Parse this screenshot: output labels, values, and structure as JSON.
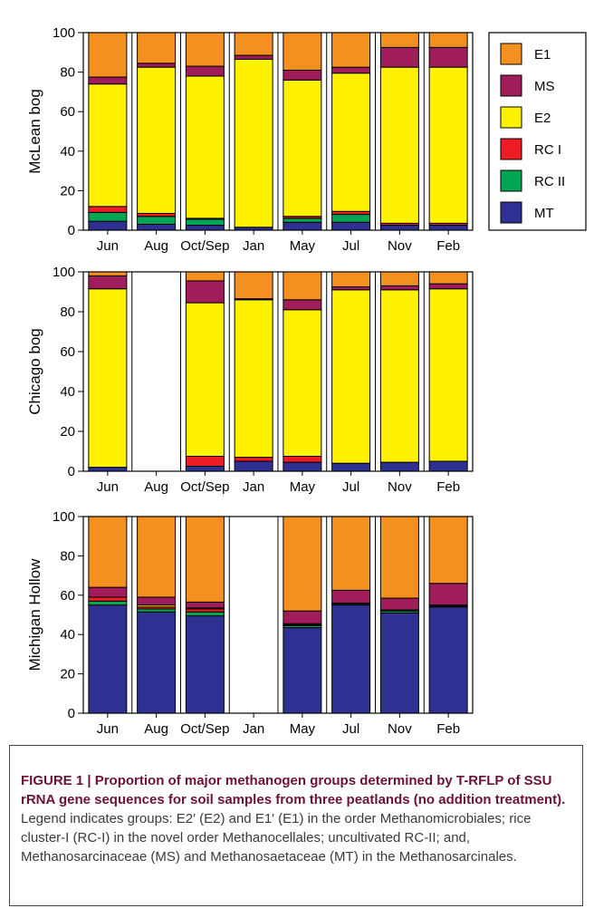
{
  "chart_data": [
    {
      "type": "bar",
      "stacked": true,
      "ylabel": "McLean bog",
      "ylim": [
        0,
        100
      ],
      "yticks": [
        0,
        20,
        40,
        60,
        80,
        100
      ],
      "categories": [
        "Jun",
        "Aug",
        "Oct/Sep",
        "Jan",
        "May",
        "Jul",
        "Nov",
        "Feb"
      ],
      "series": [
        {
          "name": "MT",
          "values": [
            4.5,
            3,
            2.5,
            1.5,
            4,
            4,
            2.5,
            2.5
          ]
        },
        {
          "name": "RC II",
          "values": [
            4.5,
            4,
            3,
            0,
            2,
            4,
            0,
            0
          ]
        },
        {
          "name": "RC I",
          "values": [
            3,
            1.5,
            0.5,
            0,
            1,
            1.5,
            1,
            1
          ]
        },
        {
          "name": "E2",
          "values": [
            62,
            74,
            72,
            85,
            69,
            70,
            79,
            79
          ]
        },
        {
          "name": "MS",
          "values": [
            3.5,
            2,
            5,
            2,
            5,
            3,
            10,
            10
          ]
        },
        {
          "name": "E1",
          "values": [
            22.5,
            15.5,
            17,
            11.5,
            19,
            17.5,
            7.5,
            7.5
          ]
        }
      ],
      "grid": false
    },
    {
      "type": "bar",
      "stacked": true,
      "ylabel": "Chicago bog",
      "ylim": [
        0,
        100
      ],
      "yticks": [
        0,
        20,
        40,
        60,
        80,
        100
      ],
      "categories": [
        "Jun",
        "Aug",
        "Oct/Sep",
        "Jan",
        "May",
        "Jul",
        "Nov",
        "Feb"
      ],
      "series": [
        {
          "name": "MT",
          "values": [
            2,
            0,
            2.5,
            5,
            4.5,
            4,
            4.5,
            5
          ]
        },
        {
          "name": "RC II",
          "values": [
            0,
            0,
            0,
            0,
            0,
            0,
            0,
            0
          ]
        },
        {
          "name": "RC I",
          "values": [
            0,
            0,
            5,
            2,
            3,
            0,
            0,
            0
          ]
        },
        {
          "name": "E2",
          "values": [
            89.5,
            0,
            77,
            79,
            73.5,
            87,
            86.5,
            86.5
          ]
        },
        {
          "name": "MS",
          "values": [
            6.5,
            0,
            11,
            0.5,
            5,
            1.5,
            2,
            2.5
          ]
        },
        {
          "name": "E1",
          "values": [
            2,
            0,
            4.5,
            13.5,
            14,
            7.5,
            7,
            6
          ]
        }
      ],
      "grid": false
    },
    {
      "type": "bar",
      "stacked": true,
      "ylabel": "Michigan Hollow",
      "ylim": [
        0,
        100
      ],
      "yticks": [
        0,
        20,
        40,
        60,
        80,
        100
      ],
      "categories": [
        "Jun",
        "Aug",
        "Oct/Sep",
        "Jan",
        "May",
        "Jul",
        "Nov",
        "Feb"
      ],
      "series": [
        {
          "name": "MT",
          "values": [
            55,
            51.5,
            49.5,
            0,
            43.5,
            55,
            51,
            54
          ]
        },
        {
          "name": "RC II",
          "values": [
            2,
            1.5,
            2,
            0,
            1,
            0.5,
            1,
            0.5
          ]
        },
        {
          "name": "RC I",
          "values": [
            2,
            1,
            1.5,
            0,
            0.5,
            0,
            0,
            0
          ]
        },
        {
          "name": "E2",
          "values": [
            0,
            1,
            0.5,
            0,
            0.5,
            0.5,
            0.5,
            0.5
          ]
        },
        {
          "name": "MS",
          "values": [
            5,
            4,
            3,
            0,
            6.5,
            6.5,
            6,
            11
          ]
        },
        {
          "name": "E1",
          "values": [
            36,
            41,
            43.5,
            0,
            48,
            37.5,
            41.5,
            34
          ]
        }
      ],
      "grid": false
    }
  ],
  "legend": {
    "position": "right",
    "items": [
      {
        "label": "E1",
        "color": "#f39020"
      },
      {
        "label": "MS",
        "color": "#a01c5a"
      },
      {
        "label": "E2",
        "color": "#fff200"
      },
      {
        "label": "RC I",
        "color": "#ee1c24"
      },
      {
        "label": "RC II",
        "color": "#00a651"
      },
      {
        "label": "MT",
        "color": "#2e3192"
      }
    ]
  },
  "caption": {
    "title": "FIGURE 1 | Proportion of major methanogen groups determined by T-RFLP of SSU rRNA gene sequences for soil samples from three peatlands (no addition treatment).",
    "body": "Legend indicates groups: E2′ (E2) and E1′ (E1) in the order Methanomicrobiales; rice cluster-I (RC-I) in the novel order Methanocellales; uncultivated RC-II; and, Methanosarcinaceae (MS) and Methanosaetaceae (MT) in the Methanosarcinales."
  }
}
